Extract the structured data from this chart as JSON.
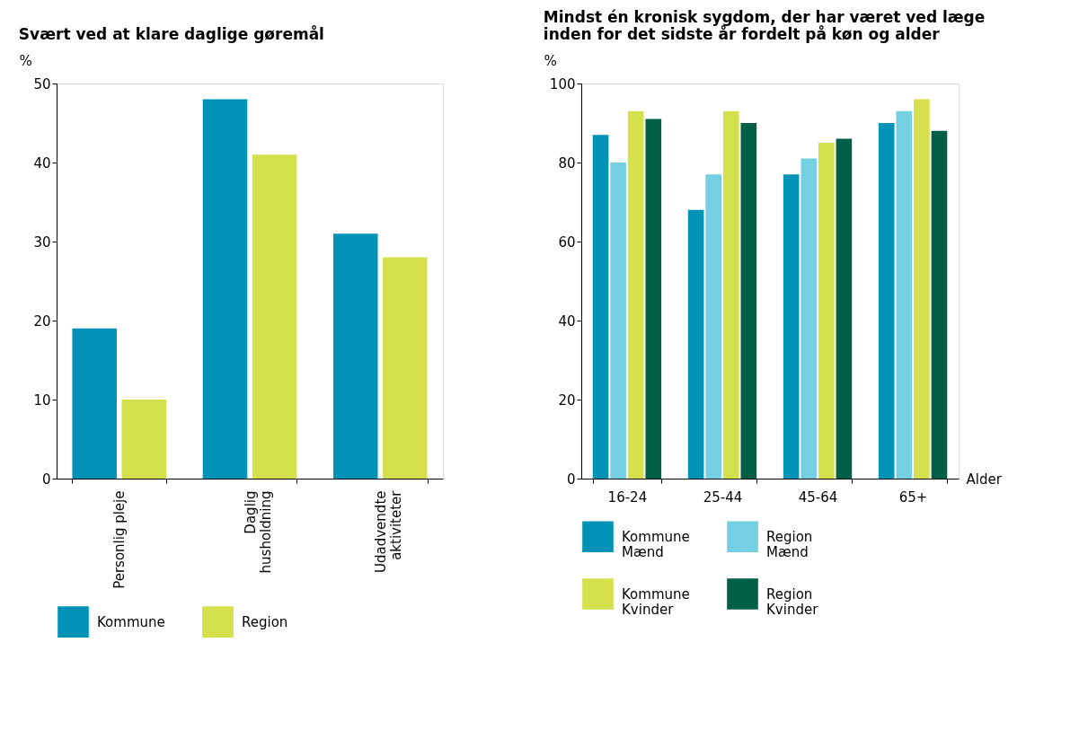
{
  "chart_data": [
    {
      "type": "bar",
      "title": "Svært ved at klare daglige gøremål",
      "ylabel": "%",
      "categories": [
        "Personlig pleje",
        "Daglig husholdning",
        "Udadvendte aktiviteter"
      ],
      "series": [
        {
          "name": "Kommune",
          "color": "#0093b5",
          "values": [
            19,
            48,
            31
          ]
        },
        {
          "name": "Region",
          "color": "#d4e04c",
          "values": [
            10,
            41,
            28
          ]
        }
      ],
      "ylim": [
        0,
        50
      ],
      "yticks": [
        0,
        10,
        20,
        30,
        40,
        50
      ],
      "grid": false,
      "legend": "bottom"
    },
    {
      "type": "bar",
      "title": "Mindst én kronisk sygdom, der har været ved læge inden for det sidste år fordelt på køn og alder",
      "ylabel": "%",
      "xlabel": "Alder",
      "categories": [
        "16-24",
        "25-44",
        "45-64",
        "65+"
      ],
      "series": [
        {
          "name": "Kommune Mænd",
          "color": "#0093b5",
          "values": [
            87,
            68,
            77,
            90
          ]
        },
        {
          "name": "Region Mænd",
          "color": "#74cfe3",
          "values": [
            80,
            77,
            81,
            93
          ]
        },
        {
          "name": "Kommune Kvinder",
          "color": "#d4e04c",
          "values": [
            93,
            93,
            85,
            96
          ]
        },
        {
          "name": "Region Kvinder",
          "color": "#005f45",
          "values": [
            91,
            90,
            86,
            88
          ]
        }
      ],
      "ylim": [
        0,
        100
      ],
      "yticks": [
        0,
        20,
        40,
        60,
        80,
        100
      ],
      "grid": false,
      "legend": "bottom"
    }
  ]
}
